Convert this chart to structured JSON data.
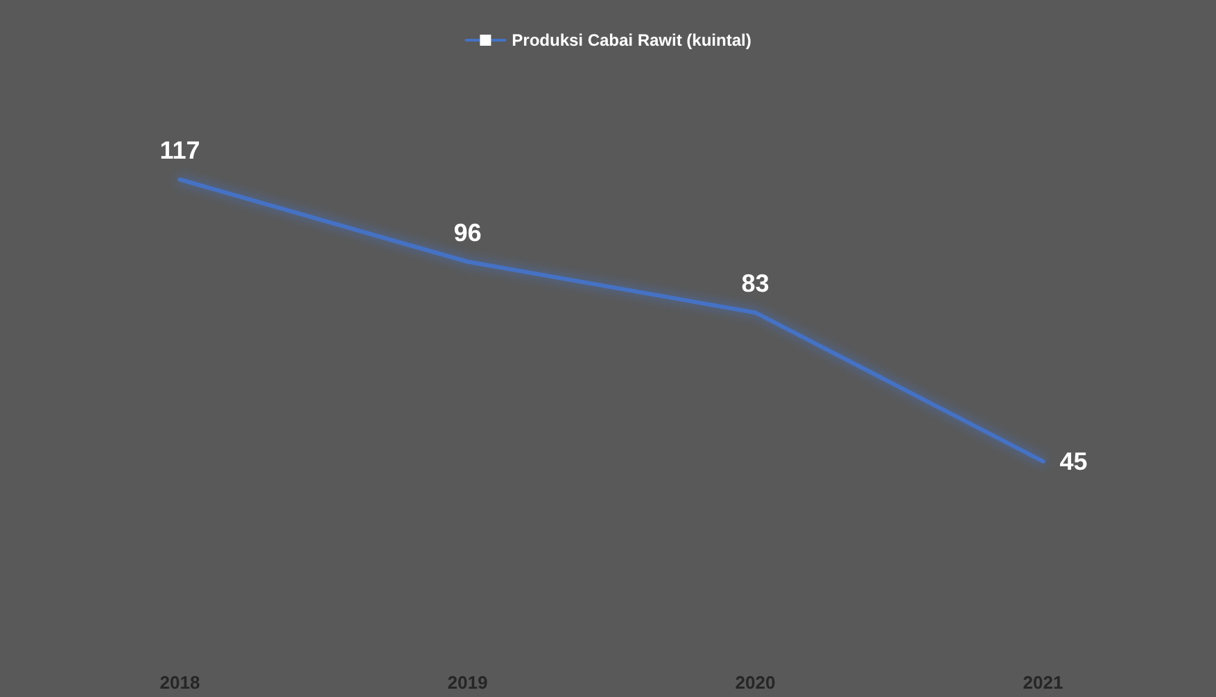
{
  "chart_data": {
    "type": "line",
    "categories": [
      "2018",
      "2019",
      "2020",
      "2021"
    ],
    "series": [
      {
        "name": "Produksi Cabai Rawit (kuintal)",
        "color": "#4472c4",
        "values": [
          117,
          96,
          83,
          45
        ]
      }
    ],
    "tick_labels": "x",
    "data_labels": true,
    "legend": "top",
    "grid": false,
    "marker": "none",
    "line_style": "solid"
  }
}
